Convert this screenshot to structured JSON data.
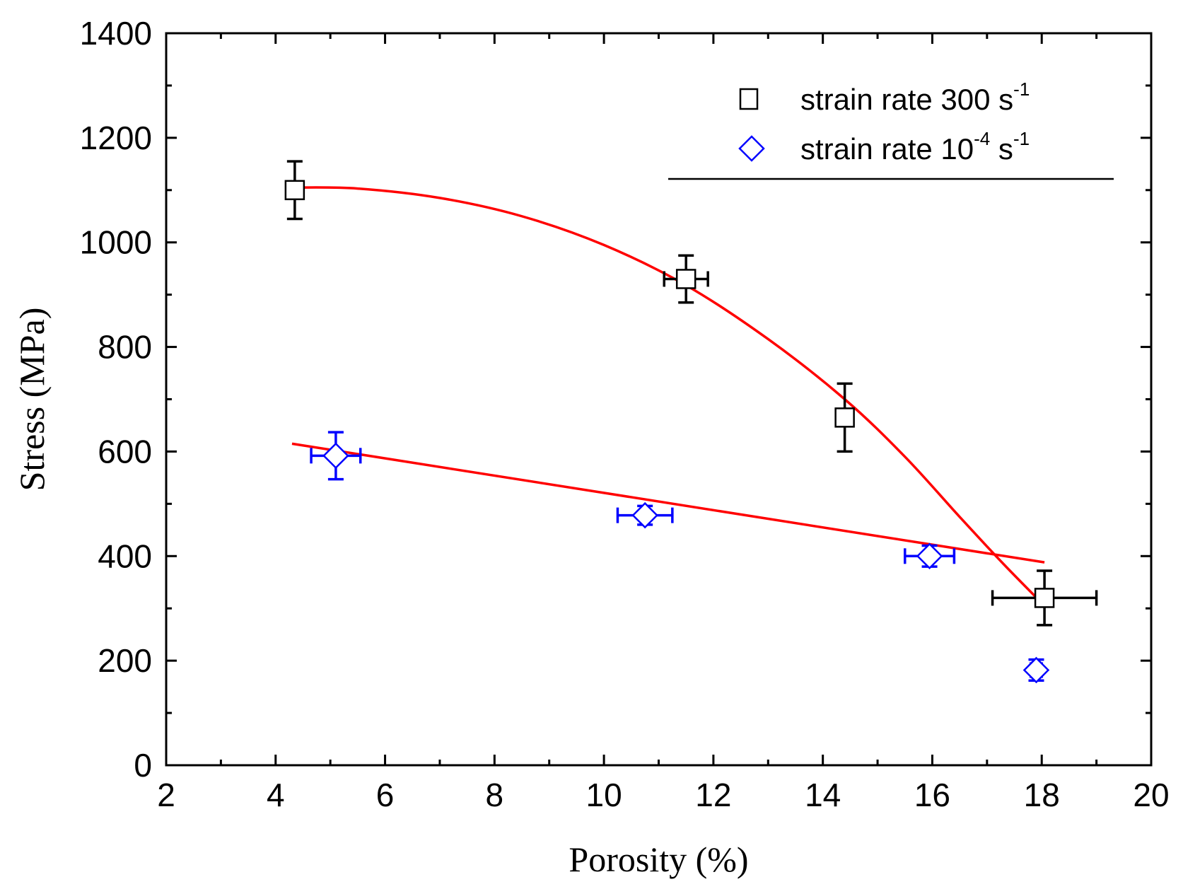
{
  "chart_data": {
    "type": "scatter",
    "title": "",
    "xlabel": "Porosity (%)",
    "ylabel": "Stress (MPa)",
    "xlim": [
      2,
      20
    ],
    "ylim": [
      0,
      1400
    ],
    "xticks": [
      2,
      4,
      6,
      8,
      10,
      12,
      14,
      16,
      18,
      20
    ],
    "yticks": [
      0,
      200,
      400,
      600,
      800,
      1000,
      1200,
      1400
    ],
    "grid": false,
    "legend_position": "top-right",
    "series": [
      {
        "name": "strain rate 300 s-1",
        "legend_main": "strain rate 300 s",
        "legend_sup": "-1",
        "marker": "square",
        "color": "#000000",
        "points": [
          {
            "x": 4.35,
            "y": 1100,
            "xerr": 0,
            "yerr": 55
          },
          {
            "x": 11.5,
            "y": 930,
            "xerr": 0.4,
            "yerr": 45
          },
          {
            "x": 14.4,
            "y": 665,
            "xerr": 0,
            "yerr": 65
          },
          {
            "x": 18.05,
            "y": 320,
            "xerr": 0.95,
            "yerr": 52
          }
        ],
        "fit": {
          "color": "#ff0000",
          "curve": [
            [
              4.35,
              1105
            ],
            [
              5.5,
              1103
            ],
            [
              7,
              1085
            ],
            [
              8.5,
              1050
            ],
            [
              10,
              995
            ],
            [
              11.5,
              918
            ],
            [
              13,
              815
            ],
            [
              14.4,
              700
            ],
            [
              15.5,
              590
            ],
            [
              16.5,
              475
            ],
            [
              17.3,
              385
            ],
            [
              18.05,
              305
            ]
          ]
        }
      },
      {
        "name": "strain rate 10-4 s-1",
        "legend_main": "strain rate 10",
        "legend_sup": "-4",
        "legend_tail": " s",
        "legend_sup2": "-1",
        "marker": "diamond",
        "color": "#0000ff",
        "points": [
          {
            "x": 5.1,
            "y": 592,
            "xerr": 0.45,
            "yerr": 45
          },
          {
            "x": 10.75,
            "y": 478,
            "xerr": 0.5,
            "yerr": 18
          },
          {
            "x": 15.95,
            "y": 400,
            "xerr": 0.45,
            "yerr": 20
          },
          {
            "x": 17.9,
            "y": 182,
            "xerr": 0.1,
            "yerr": 20
          }
        ],
        "fit": {
          "color": "#ff0000",
          "curve": [
            [
              4.3,
              615
            ],
            [
              18.05,
              388
            ]
          ]
        }
      }
    ]
  }
}
